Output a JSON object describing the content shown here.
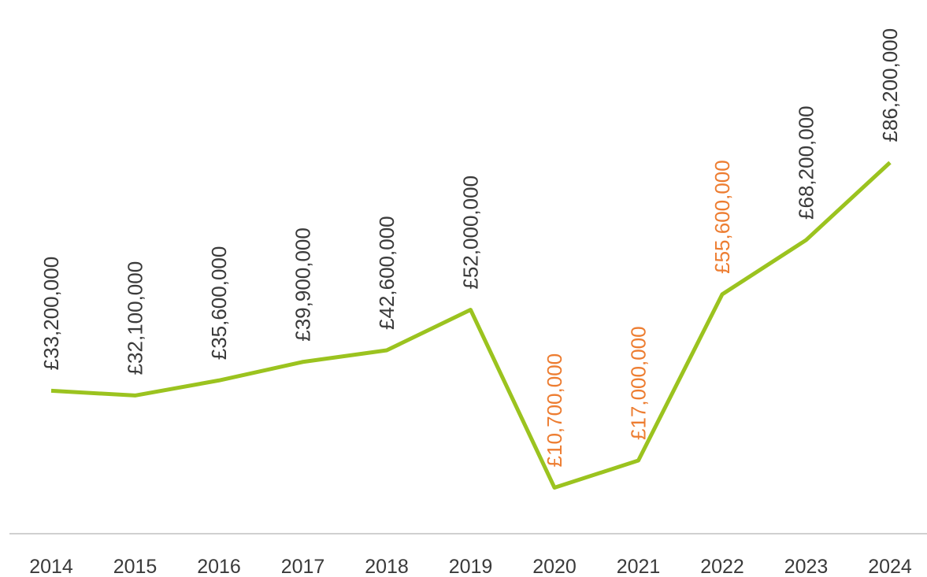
{
  "chart_data": {
    "type": "line",
    "categories": [
      "2014",
      "2015",
      "2016",
      "2017",
      "2018",
      "2019",
      "2020",
      "2021",
      "2022",
      "2023",
      "2024"
    ],
    "values": [
      33200000,
      32100000,
      35600000,
      39900000,
      42600000,
      52000000,
      10700000,
      17000000,
      55600000,
      68200000,
      86200000
    ],
    "value_labels": [
      "£33,200,000",
      "£32,100,000",
      "£35,600,000",
      "£39,900,000",
      "£42,600,000",
      "£52,000,000",
      "£10,700,000",
      "£17,000,000",
      "£55,600,000",
      "£68,200,000",
      "£86,200,000"
    ],
    "value_label_colors": [
      "#3a3a3a",
      "#3a3a3a",
      "#3a3a3a",
      "#3a3a3a",
      "#3a3a3a",
      "#3a3a3a",
      "#ed7d31",
      "#ed7d31",
      "#ed7d31",
      "#3a3a3a",
      "#3a3a3a"
    ],
    "color": "#9bc31f",
    "ylim": [
      0,
      100000000
    ]
  }
}
